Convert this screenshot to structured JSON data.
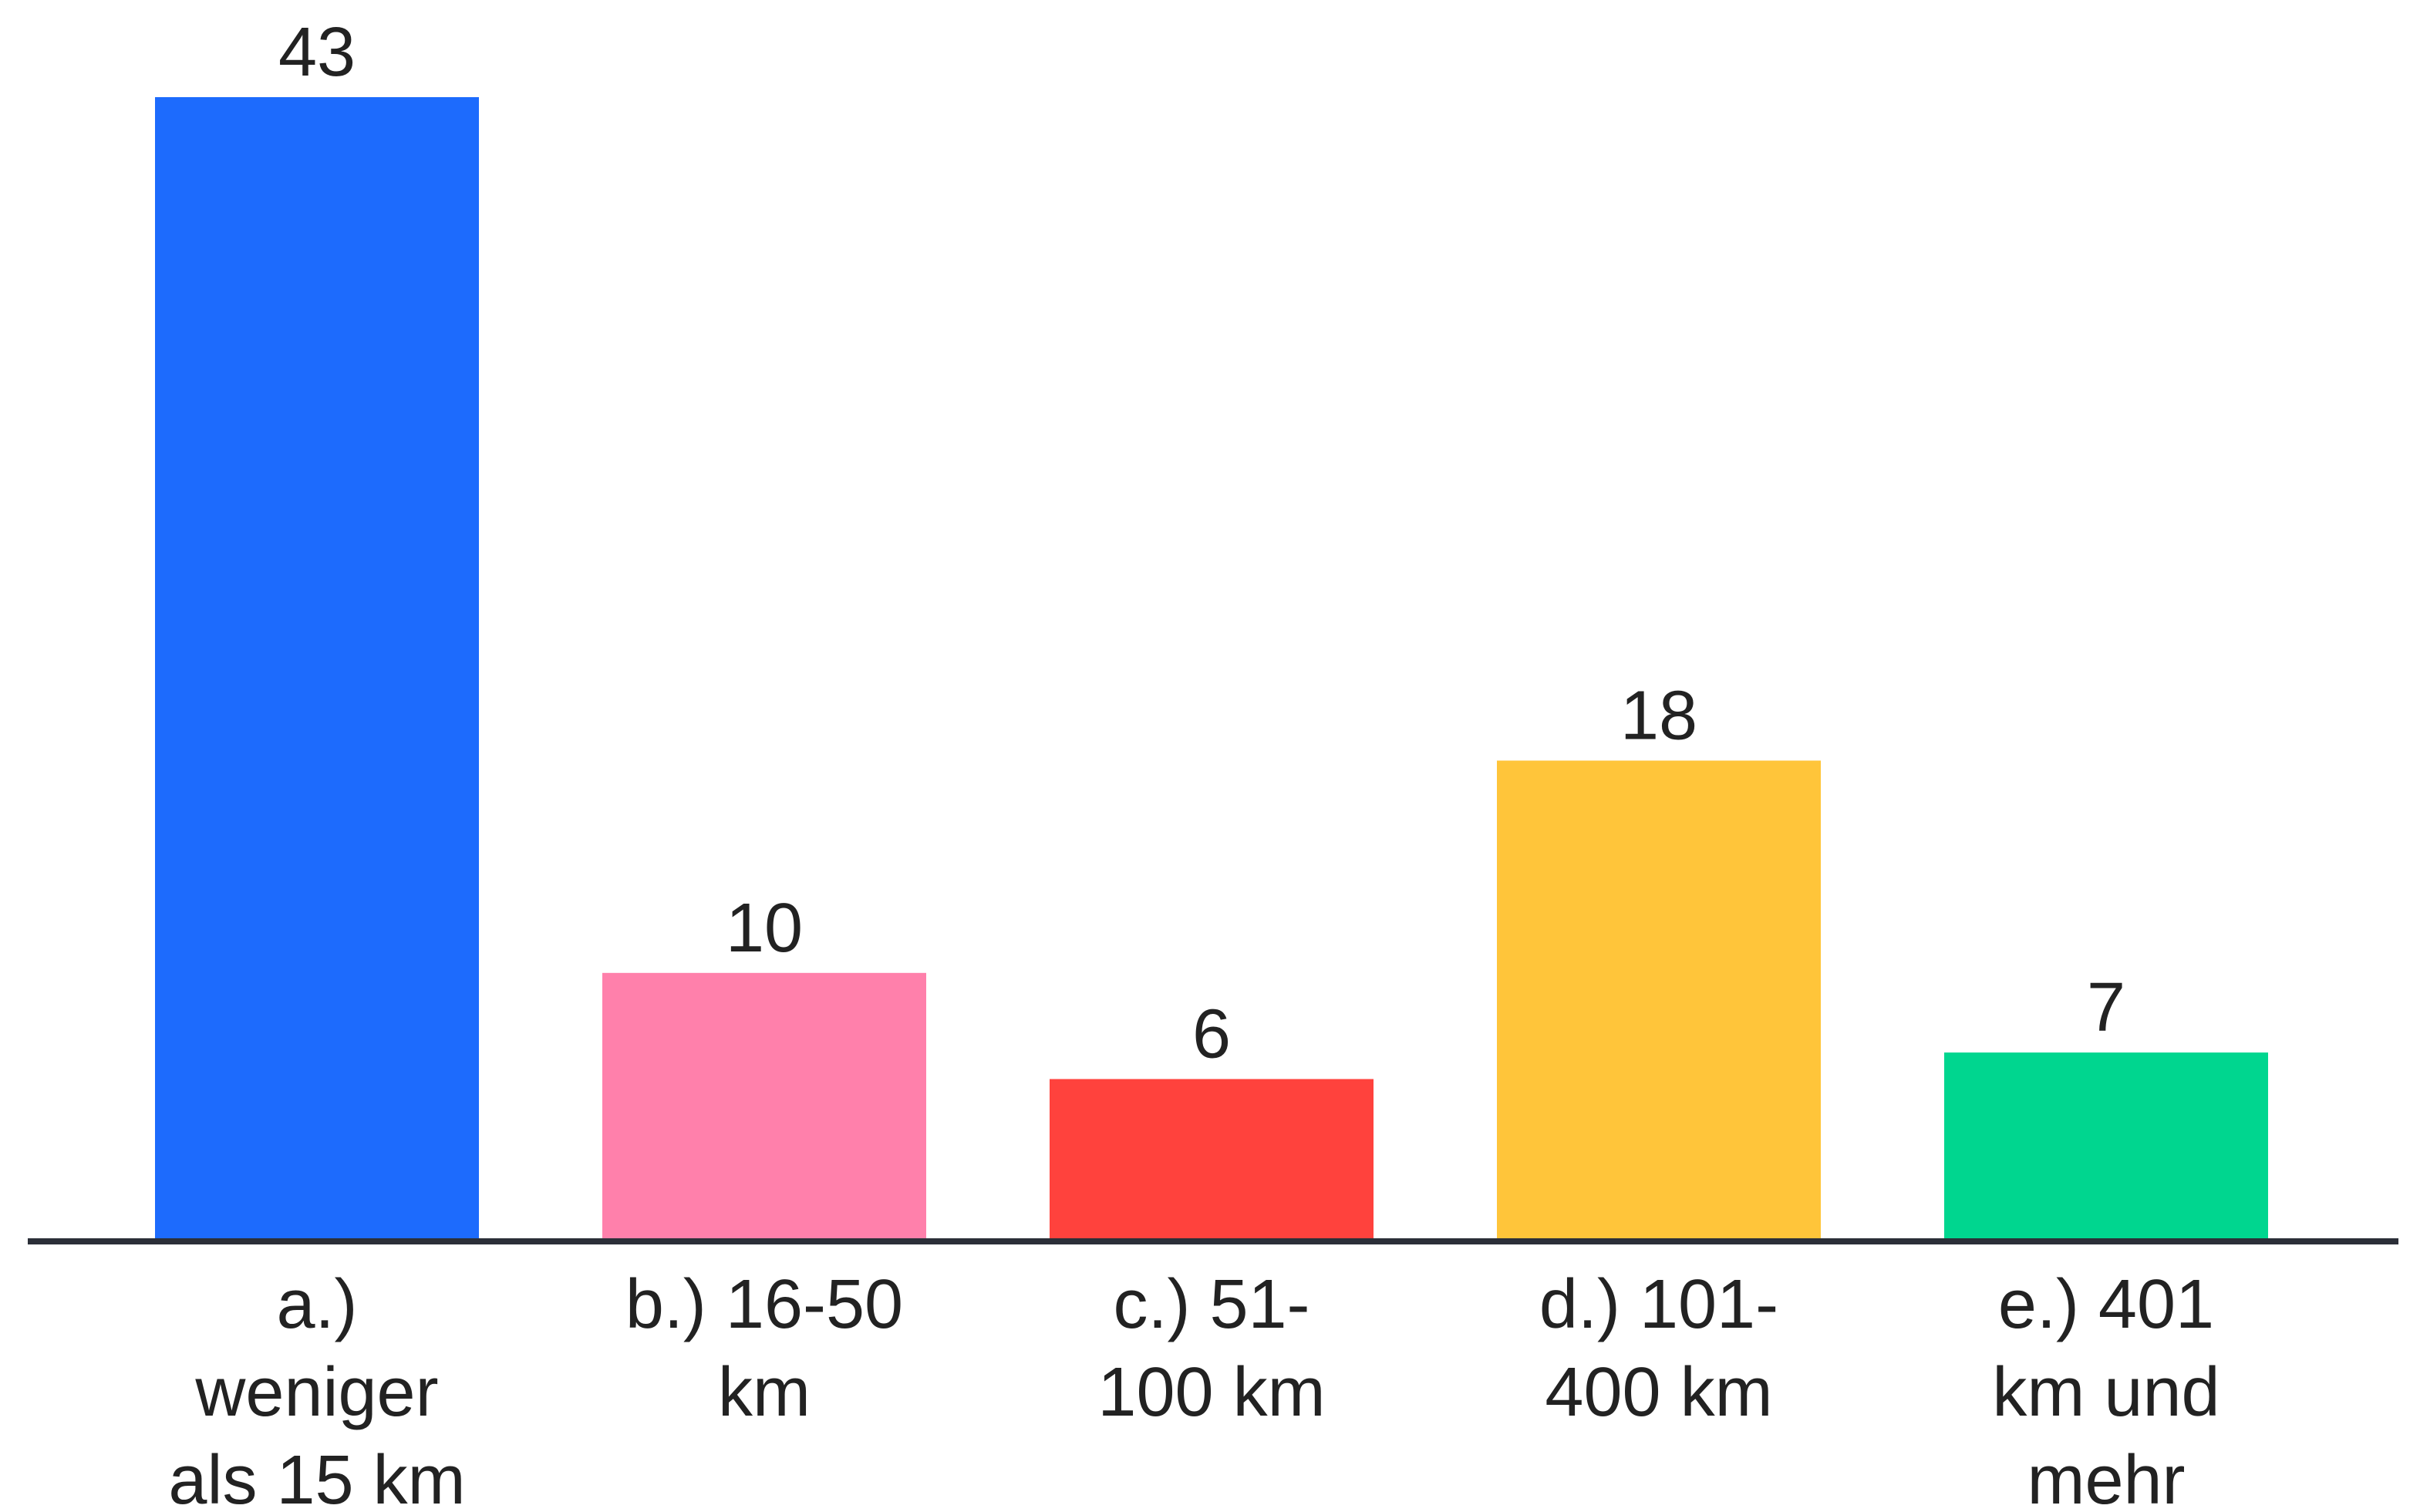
{
  "chart_data": {
    "type": "bar",
    "categories": [
      [
        "a.)",
        "weniger",
        "als 15 km"
      ],
      [
        "b.) 16-50",
        "km"
      ],
      [
        "c.) 51-",
        "100 km"
      ],
      [
        "d.) 101-",
        "400 km"
      ],
      [
        "e.) 401",
        "km und",
        "mehr"
      ]
    ],
    "values": [
      43,
      10,
      6,
      18,
      7
    ],
    "colors": [
      "#1d6bfd",
      "#ff80ab",
      "#ff423d",
      "#ffc53a",
      "#00d68f"
    ],
    "axis_color": "#2b2f38",
    "title": "",
    "xlabel": "",
    "ylabel": "",
    "ylim": [
      0,
      43
    ],
    "grid": false,
    "legend": "none"
  }
}
